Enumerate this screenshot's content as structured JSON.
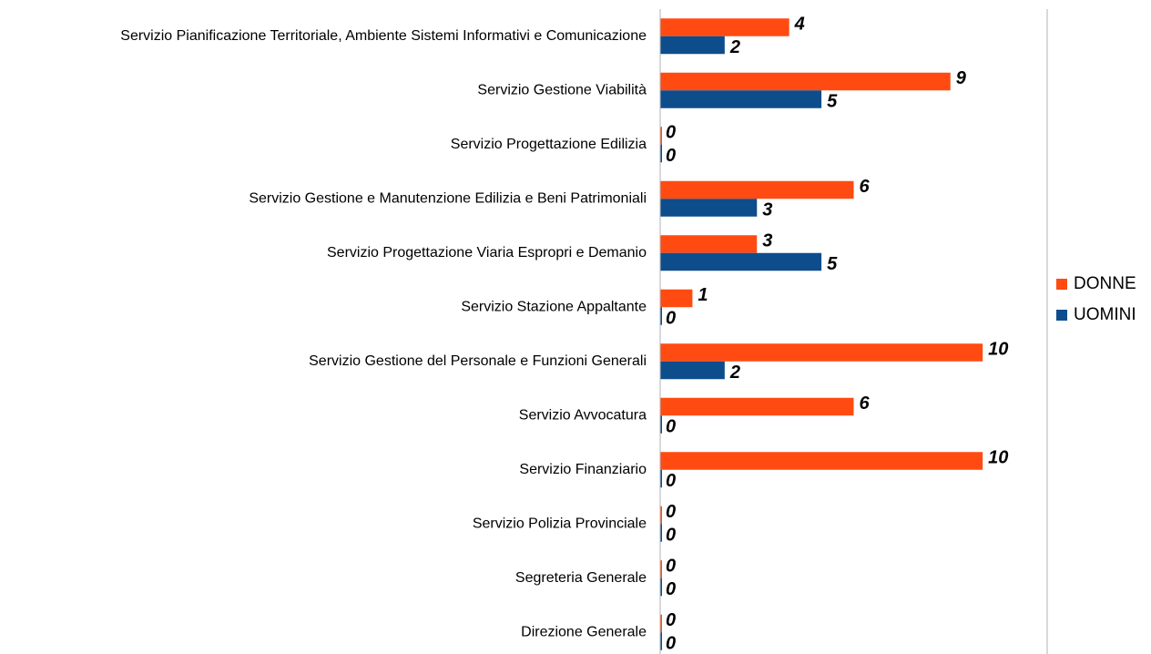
{
  "chart_data": {
    "type": "hbar",
    "categories": [
      "Servizio Pianificazione Territoriale, Ambiente Sistemi Informativi e Comunicazione",
      "Servizio Gestione Viabilità",
      "Servizio Progettazione Edilizia",
      "Servizio Gestione e Manutenzione Edilizia e Beni Patrimoniali",
      "Servizio Progettazione Viaria Espropri e Demanio",
      "Servizio Stazione Appaltante",
      "Servizio Gestione del Personale e Funzioni Generali",
      "Servizio Avvocatura",
      "Servizio Finanziario",
      "Servizio Polizia Provinciale ",
      "Segreteria Generale",
      "Direzione Generale"
    ],
    "series": [
      {
        "name": "DONNE",
        "color": "#ff4b12",
        "values": [
          4,
          9,
          0,
          6,
          3,
          1,
          10,
          6,
          10,
          0,
          0,
          0
        ]
      },
      {
        "name": "UOMINI",
        "color": "#0d4d8c",
        "values": [
          2,
          5,
          0,
          3,
          5,
          0,
          2,
          0,
          0,
          0,
          0,
          0
        ]
      }
    ],
    "xlim": [
      0,
      12
    ],
    "legend": "right"
  }
}
